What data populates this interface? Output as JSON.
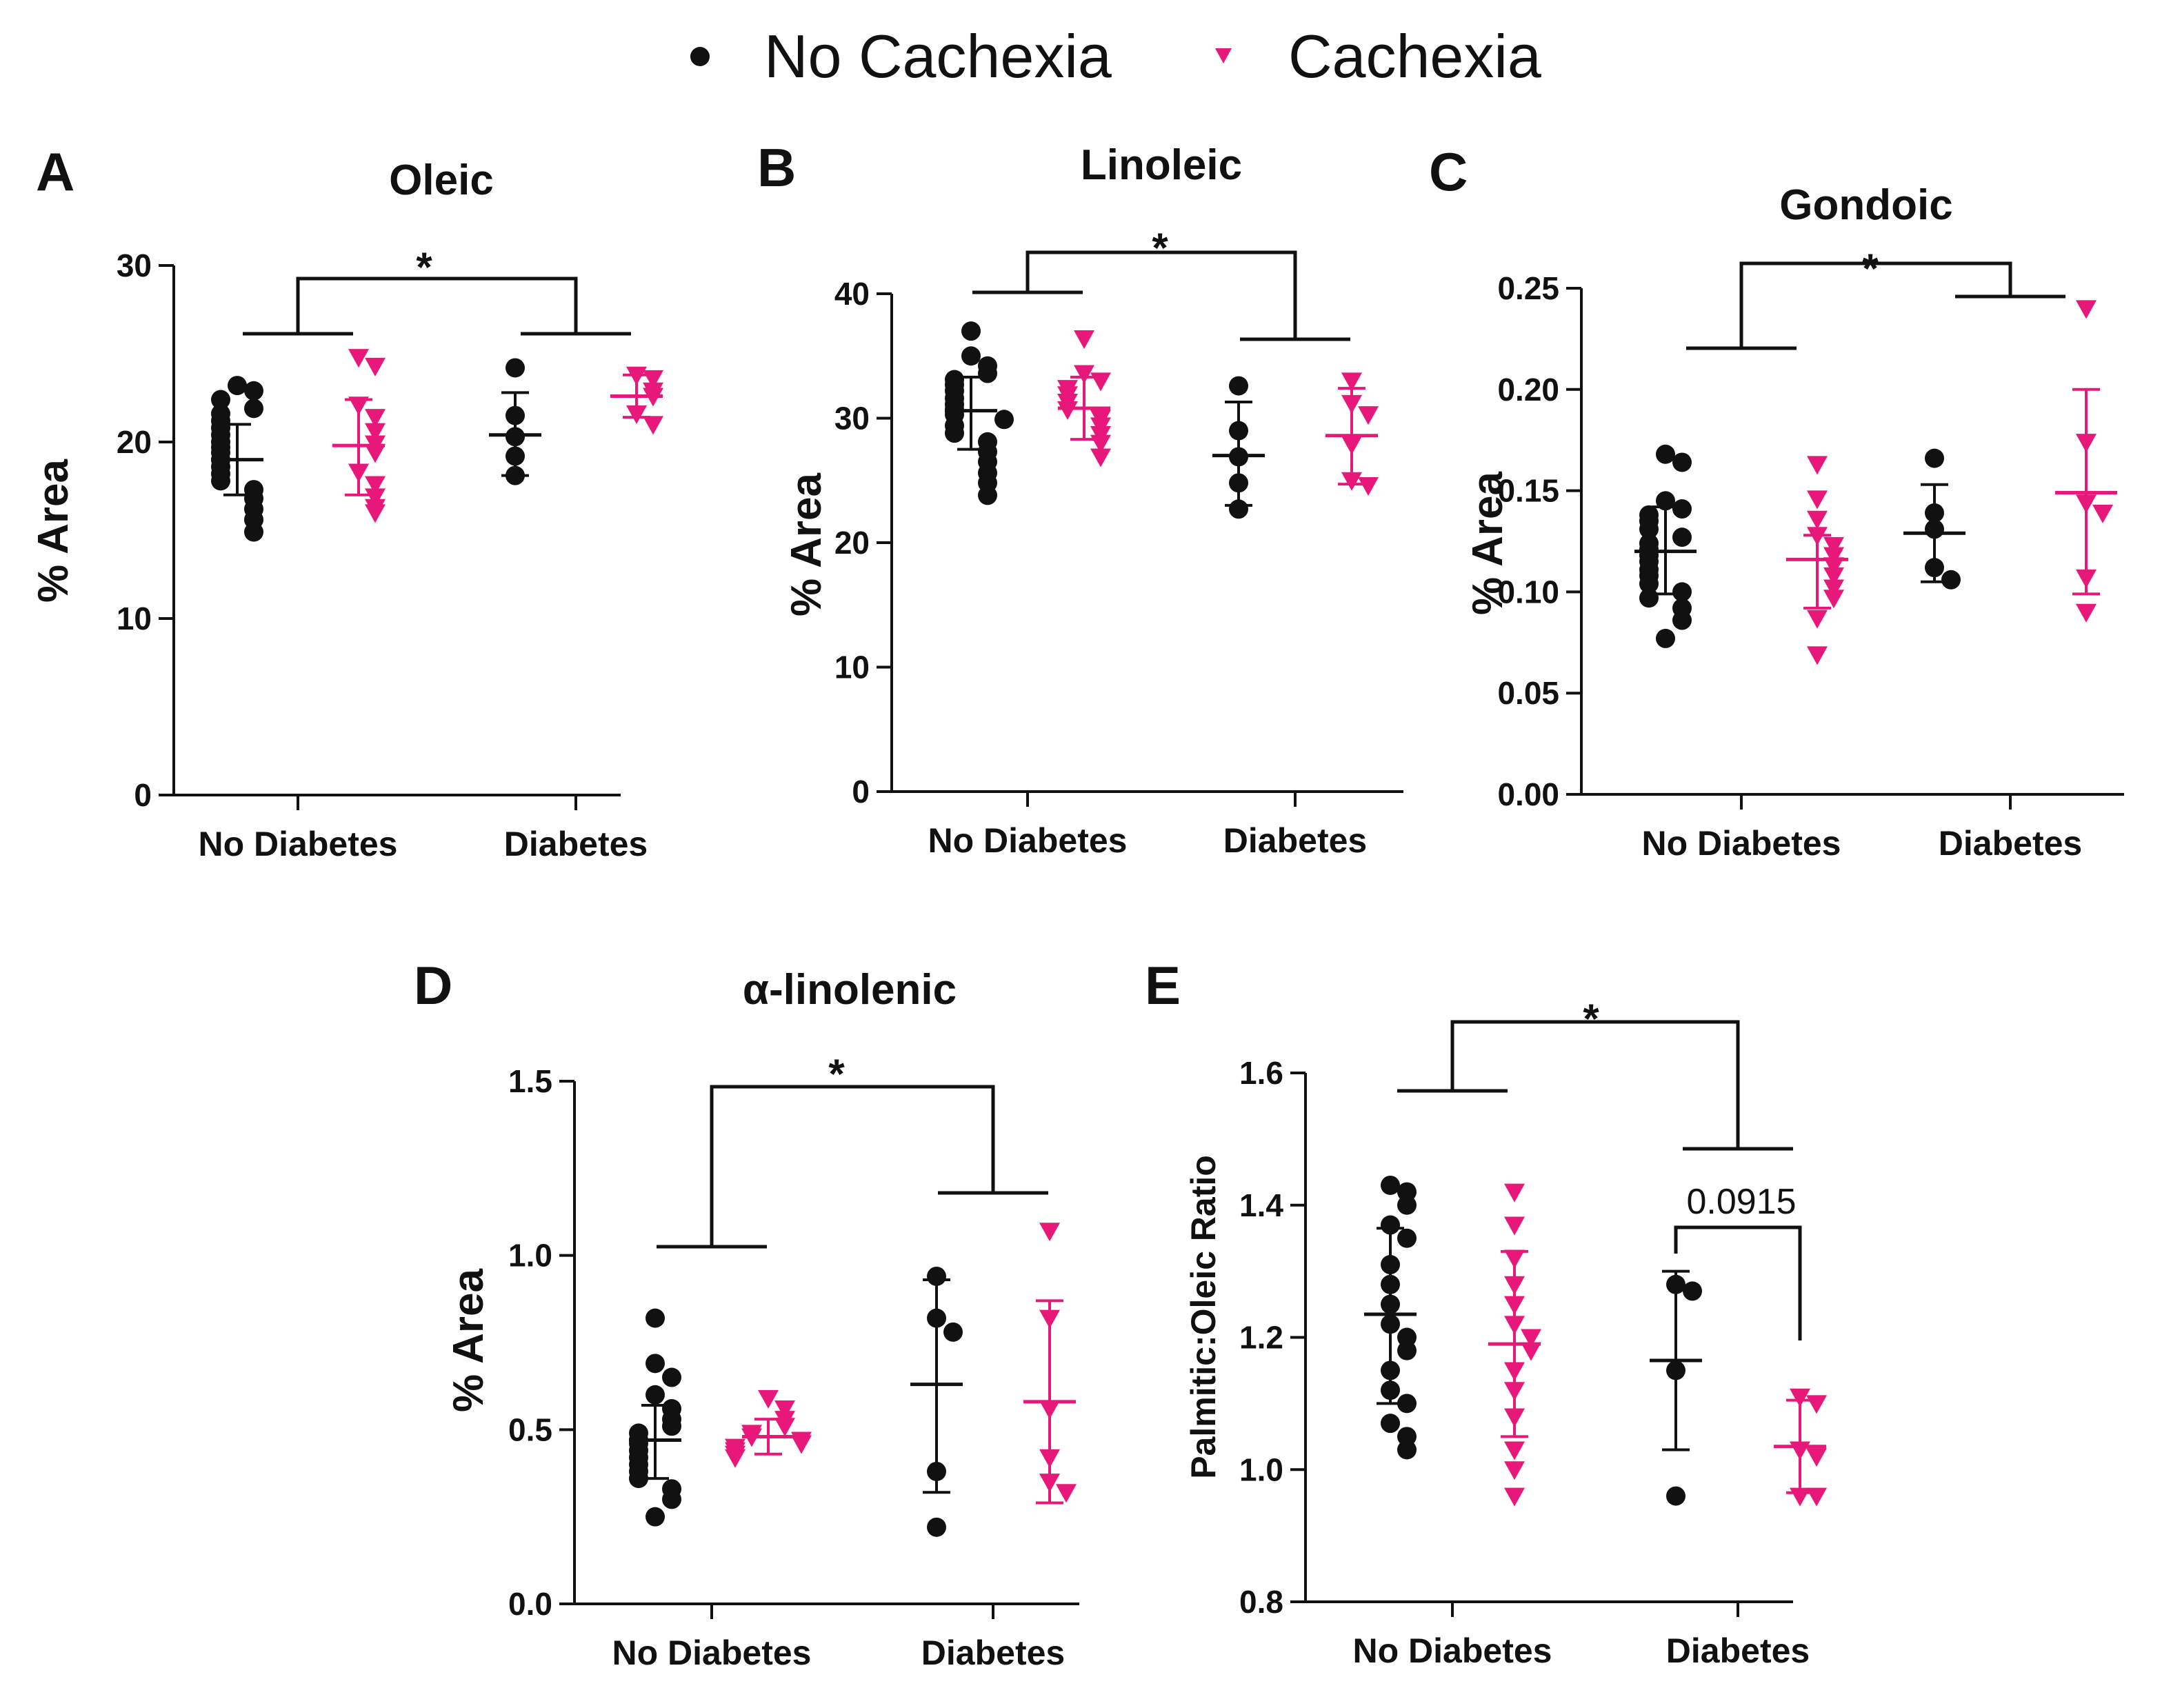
{
  "legend": {
    "items": [
      {
        "label": "No Cachexia",
        "marker": "circle",
        "color": "#111111"
      },
      {
        "label": "Cachexia",
        "marker": "triangle-down",
        "color": "#e8187a"
      }
    ]
  },
  "colors": {
    "no_cachexia": "#111111",
    "cachexia": "#e8187a"
  },
  "chart_data": [
    {
      "panel": "A",
      "type": "scatter",
      "title": "Oleic",
      "ylabel": "% Area",
      "categories": [
        "No Diabetes",
        "Diabetes"
      ],
      "ylim": [
        0,
        30
      ],
      "yticks": [
        0,
        10,
        20,
        30
      ],
      "tick_format": "int",
      "series": [
        {
          "name": "No Cachexia",
          "group": "No Diabetes",
          "mean": 19.0,
          "sd": [
            17.0,
            21.0
          ],
          "values": [
            23.2,
            22.9,
            22.4,
            21.9,
            21.6,
            21.2,
            20.8,
            20.4,
            20.0,
            19.7,
            19.4,
            19.0,
            18.6,
            18.2,
            17.8,
            17.3,
            16.8,
            16.2,
            15.6,
            14.9
          ]
        },
        {
          "name": "Cachexia",
          "group": "No Diabetes",
          "mean": 19.8,
          "sd": [
            17.0,
            22.4
          ],
          "values": [
            24.8,
            24.3,
            22.1,
            21.4,
            20.6,
            19.9,
            19.4,
            18.3,
            17.6,
            16.9,
            16.3,
            16.0
          ]
        },
        {
          "name": "No Cachexia",
          "group": "Diabetes",
          "mean": 20.4,
          "sd": [
            18.1,
            22.8
          ],
          "values": [
            24.2,
            21.5,
            20.3,
            19.2,
            18.1
          ]
        },
        {
          "name": "Cachexia",
          "group": "Diabetes",
          "mean": 22.6,
          "sd": [
            21.4,
            23.8
          ],
          "values": [
            23.8,
            23.6,
            22.9,
            22.6,
            21.6,
            21.0
          ]
        }
      ],
      "significance": [
        {
          "label": "*",
          "between": [
            "No Diabetes",
            "Diabetes"
          ]
        }
      ]
    },
    {
      "panel": "B",
      "type": "scatter",
      "title": "Linoleic",
      "ylabel": "% Area",
      "categories": [
        "No Diabetes",
        "Diabetes"
      ],
      "ylim": [
        0,
        40
      ],
      "yticks": [
        0,
        10,
        20,
        30,
        40
      ],
      "tick_format": "int",
      "series": [
        {
          "name": "No Cachexia",
          "group": "No Diabetes",
          "mean": 30.6,
          "sd": [
            27.5,
            33.3
          ],
          "values": [
            37.0,
            35.0,
            34.2,
            33.6,
            33.1,
            32.7,
            32.2,
            31.6,
            31.1,
            30.7,
            30.3,
            29.9,
            29.4,
            28.8,
            28.1,
            27.3,
            26.5,
            25.6,
            24.8,
            23.8
          ]
        },
        {
          "name": "Cachexia",
          "group": "No Diabetes",
          "mean": 30.8,
          "sd": [
            28.3,
            33.3
          ],
          "values": [
            36.4,
            33.6,
            33.0,
            32.4,
            31.9,
            31.3,
            30.7,
            30.0,
            29.4,
            28.7,
            28.0,
            26.9
          ]
        },
        {
          "name": "No Cachexia",
          "group": "Diabetes",
          "mean": 27.0,
          "sd": [
            23.0,
            31.3
          ],
          "values": [
            32.6,
            29.0,
            26.9,
            24.8,
            22.7
          ]
        },
        {
          "name": "Cachexia",
          "group": "Diabetes",
          "mean": 28.6,
          "sd": [
            24.7,
            32.4
          ],
          "values": [
            33.0,
            31.2,
            30.3,
            27.9,
            25.0,
            24.6
          ]
        }
      ],
      "significance": [
        {
          "label": "*",
          "between": [
            "No Diabetes",
            "Diabetes"
          ]
        }
      ]
    },
    {
      "panel": "C",
      "type": "scatter",
      "title": "Gondoic",
      "ylabel": "% Area",
      "categories": [
        "No Diabetes",
        "Diabetes"
      ],
      "ylim": [
        0,
        0.25
      ],
      "yticks": [
        0,
        0.05,
        0.1,
        0.15,
        0.2,
        0.25
      ],
      "tick_format": "2dp",
      "series": [
        {
          "name": "No Cachexia",
          "group": "No Diabetes",
          "mean": 0.12,
          "sd": [
            0.099,
            0.142
          ],
          "values": [
            0.168,
            0.164,
            0.145,
            0.141,
            0.138,
            0.135,
            0.131,
            0.127,
            0.124,
            0.121,
            0.118,
            0.115,
            0.111,
            0.108,
            0.104,
            0.1,
            0.097,
            0.092,
            0.086,
            0.077
          ]
        },
        {
          "name": "Cachexia",
          "group": "No Diabetes",
          "mean": 0.116,
          "sd": [
            0.092,
            0.128
          ],
          "values": [
            0.163,
            0.146,
            0.136,
            0.128,
            0.123,
            0.118,
            0.113,
            0.108,
            0.102,
            0.097,
            0.087,
            0.069
          ]
        },
        {
          "name": "No Cachexia",
          "group": "Diabetes",
          "mean": 0.129,
          "sd": [
            0.105,
            0.153
          ],
          "values": [
            0.166,
            0.139,
            0.131,
            0.112,
            0.106
          ]
        },
        {
          "name": "Cachexia",
          "group": "Diabetes",
          "mean": 0.149,
          "sd": [
            0.099,
            0.2
          ],
          "values": [
            0.24,
            0.174,
            0.144,
            0.139,
            0.107,
            0.09
          ]
        }
      ],
      "significance": [
        {
          "label": "*",
          "between": [
            "No Diabetes",
            "Diabetes"
          ]
        }
      ]
    },
    {
      "panel": "D",
      "type": "scatter",
      "title": "α-linolenic",
      "ylabel": "% Area",
      "categories": [
        "No Diabetes",
        "Diabetes"
      ],
      "ylim": [
        0,
        1.5
      ],
      "yticks": [
        0,
        0.5,
        1.0,
        1.5
      ],
      "tick_format": "1dp",
      "series": [
        {
          "name": "No Cachexia",
          "group": "No Diabetes",
          "mean": 0.47,
          "sd": [
            0.36,
            0.57
          ],
          "values": [
            0.82,
            0.69,
            0.65,
            0.6,
            0.56,
            0.53,
            0.51,
            0.49,
            0.47,
            0.46,
            0.44,
            0.42,
            0.4,
            0.38,
            0.36,
            0.33,
            0.3,
            0.25
          ]
        },
        {
          "name": "Cachexia",
          "group": "No Diabetes",
          "mean": 0.48,
          "sd": [
            0.43,
            0.53
          ],
          "values": [
            0.59,
            0.56,
            0.53,
            0.51,
            0.49,
            0.48,
            0.47,
            0.46,
            0.45,
            0.44,
            0.43,
            0.42
          ]
        },
        {
          "name": "No Cachexia",
          "group": "Diabetes",
          "mean": 0.63,
          "sd": [
            0.32,
            0.93
          ],
          "values": [
            0.94,
            0.82,
            0.78,
            0.38,
            0.22
          ]
        },
        {
          "name": "Cachexia",
          "group": "Diabetes",
          "mean": 0.58,
          "sd": [
            0.29,
            0.87
          ],
          "values": [
            1.07,
            0.82,
            0.56,
            0.42,
            0.35,
            0.32
          ]
        }
      ],
      "significance": [
        {
          "label": "*",
          "between": [
            "No Diabetes",
            "Diabetes"
          ]
        }
      ]
    },
    {
      "panel": "E",
      "type": "scatter",
      "title": "",
      "ylabel": "Palmitic:Oleic Ratio",
      "categories": [
        "No Diabetes",
        "Diabetes"
      ],
      "ylim": [
        0.8,
        1.6
      ],
      "yticks": [
        0.8,
        1.0,
        1.2,
        1.4,
        1.6
      ],
      "tick_format": "1dp",
      "series": [
        {
          "name": "No Cachexia",
          "group": "No Diabetes",
          "mean": 1.235,
          "sd": [
            1.1,
            1.365
          ],
          "values": [
            1.43,
            1.42,
            1.4,
            1.37,
            1.35,
            1.31,
            1.28,
            1.25,
            1.22,
            1.2,
            1.18,
            1.15,
            1.12,
            1.1,
            1.07,
            1.05,
            1.03
          ]
        },
        {
          "name": "Cachexia",
          "group": "No Diabetes",
          "mean": 1.19,
          "sd": [
            1.05,
            1.33
          ],
          "values": [
            1.42,
            1.37,
            1.32,
            1.28,
            1.25,
            1.22,
            1.2,
            1.18,
            1.15,
            1.12,
            1.08,
            1.03,
            1.0,
            0.96
          ]
        },
        {
          "name": "No Cachexia",
          "group": "Diabetes",
          "mean": 1.165,
          "sd": [
            1.03,
            1.3
          ],
          "values": [
            1.28,
            1.27,
            1.15,
            0.96
          ]
        },
        {
          "name": "Cachexia",
          "group": "Diabetes",
          "mean": 1.035,
          "sd": [
            0.965,
            1.105
          ],
          "values": [
            1.11,
            1.1,
            1.03,
            1.02,
            0.96,
            0.96
          ]
        }
      ],
      "significance": [
        {
          "label": "*",
          "between": [
            "No Diabetes",
            "Diabetes"
          ]
        },
        {
          "label": "0.0915",
          "between": [
            "Diabetes: No Cachexia",
            "Diabetes: Cachexia"
          ]
        }
      ]
    }
  ]
}
